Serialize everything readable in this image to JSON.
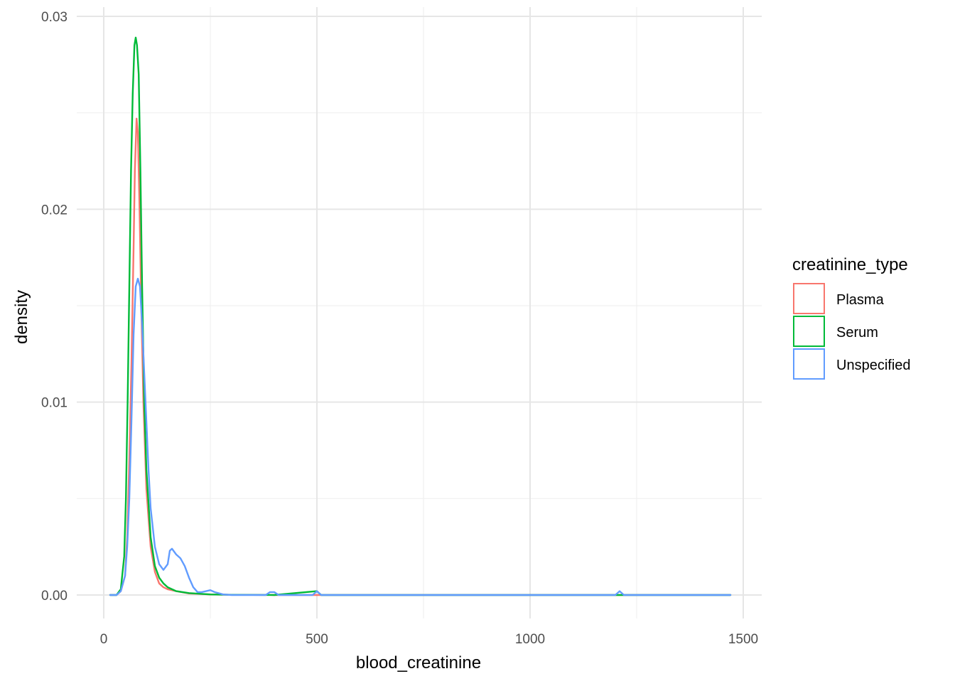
{
  "chart_data": {
    "type": "line",
    "xlabel": "blood_creatinine",
    "ylabel": "density",
    "xlim": [
      0,
      1500
    ],
    "ylim": [
      0,
      0.03
    ],
    "x_ticks": [
      {
        "value": 0,
        "label": "0"
      },
      {
        "value": 500,
        "label": "500"
      },
      {
        "value": 1000,
        "label": "1000"
      },
      {
        "value": 1500,
        "label": "1500"
      }
    ],
    "y_ticks": [
      {
        "value": 0.0,
        "label": "0.00"
      },
      {
        "value": 0.01,
        "label": "0.01"
      },
      {
        "value": 0.02,
        "label": "0.02"
      },
      {
        "value": 0.03,
        "label": "0.03"
      }
    ],
    "grid": true,
    "legend": {
      "title": "creatinine_type",
      "position": "right"
    },
    "series": [
      {
        "name": "Plasma",
        "color": "#F8766D",
        "x": [
          15,
          30,
          40,
          50,
          55,
          60,
          65,
          70,
          73,
          77,
          80,
          84,
          88,
          93,
          100,
          110,
          120,
          130,
          140,
          150,
          170,
          200,
          250,
          300,
          400,
          600,
          800,
          1000,
          1200,
          1470
        ],
        "y": [
          0,
          0,
          0.0002,
          0.001,
          0.003,
          0.007,
          0.012,
          0.018,
          0.022,
          0.0247,
          0.024,
          0.02,
          0.015,
          0.01,
          0.0055,
          0.0025,
          0.0012,
          0.0006,
          0.0004,
          0.0003,
          0.0002,
          8e-05,
          3e-05,
          1e-05,
          0,
          0,
          0,
          0,
          0,
          0
        ]
      },
      {
        "name": "Serum",
        "color": "#00BA38",
        "x": [
          15,
          30,
          40,
          48,
          52,
          56,
          60,
          64,
          68,
          72,
          75,
          78,
          82,
          86,
          90,
          95,
          100,
          110,
          120,
          130,
          140,
          150,
          170,
          200,
          250,
          300,
          400,
          500,
          510,
          600,
          800,
          1000,
          1200,
          1470
        ],
        "y": [
          0,
          0,
          0.0003,
          0.002,
          0.005,
          0.01,
          0.016,
          0.022,
          0.026,
          0.0285,
          0.0289,
          0.0285,
          0.027,
          0.022,
          0.016,
          0.01,
          0.0065,
          0.003,
          0.0015,
          0.0009,
          0.0006,
          0.0004,
          0.0002,
          0.0001,
          3e-05,
          1e-05,
          0,
          0.0002,
          0,
          0,
          0,
          0,
          0,
          0
        ]
      },
      {
        "name": "Unspecified",
        "color": "#619CFF",
        "x": [
          15,
          30,
          40,
          50,
          55,
          60,
          65,
          70,
          75,
          80,
          85,
          90,
          95,
          100,
          105,
          110,
          120,
          130,
          140,
          150,
          155,
          160,
          170,
          180,
          190,
          200,
          210,
          220,
          230,
          240,
          250,
          260,
          280,
          300,
          380,
          390,
          400,
          410,
          490,
          500,
          510,
          600,
          800,
          1000,
          1200,
          1210,
          1220,
          1470
        ],
        "y": [
          0,
          0,
          0.0002,
          0.001,
          0.0025,
          0.005,
          0.009,
          0.0135,
          0.016,
          0.0164,
          0.016,
          0.014,
          0.0115,
          0.009,
          0.0065,
          0.0045,
          0.0025,
          0.0016,
          0.0013,
          0.0016,
          0.0023,
          0.0024,
          0.0021,
          0.0019,
          0.0015,
          0.0009,
          0.0004,
          0.00015,
          0.00015,
          0.0002,
          0.00025,
          0.00015,
          3e-05,
          0,
          0,
          0.00015,
          0.00015,
          0,
          0,
          0.0002,
          0,
          0,
          0,
          0,
          0,
          0.0002,
          0,
          0
        ]
      }
    ]
  }
}
